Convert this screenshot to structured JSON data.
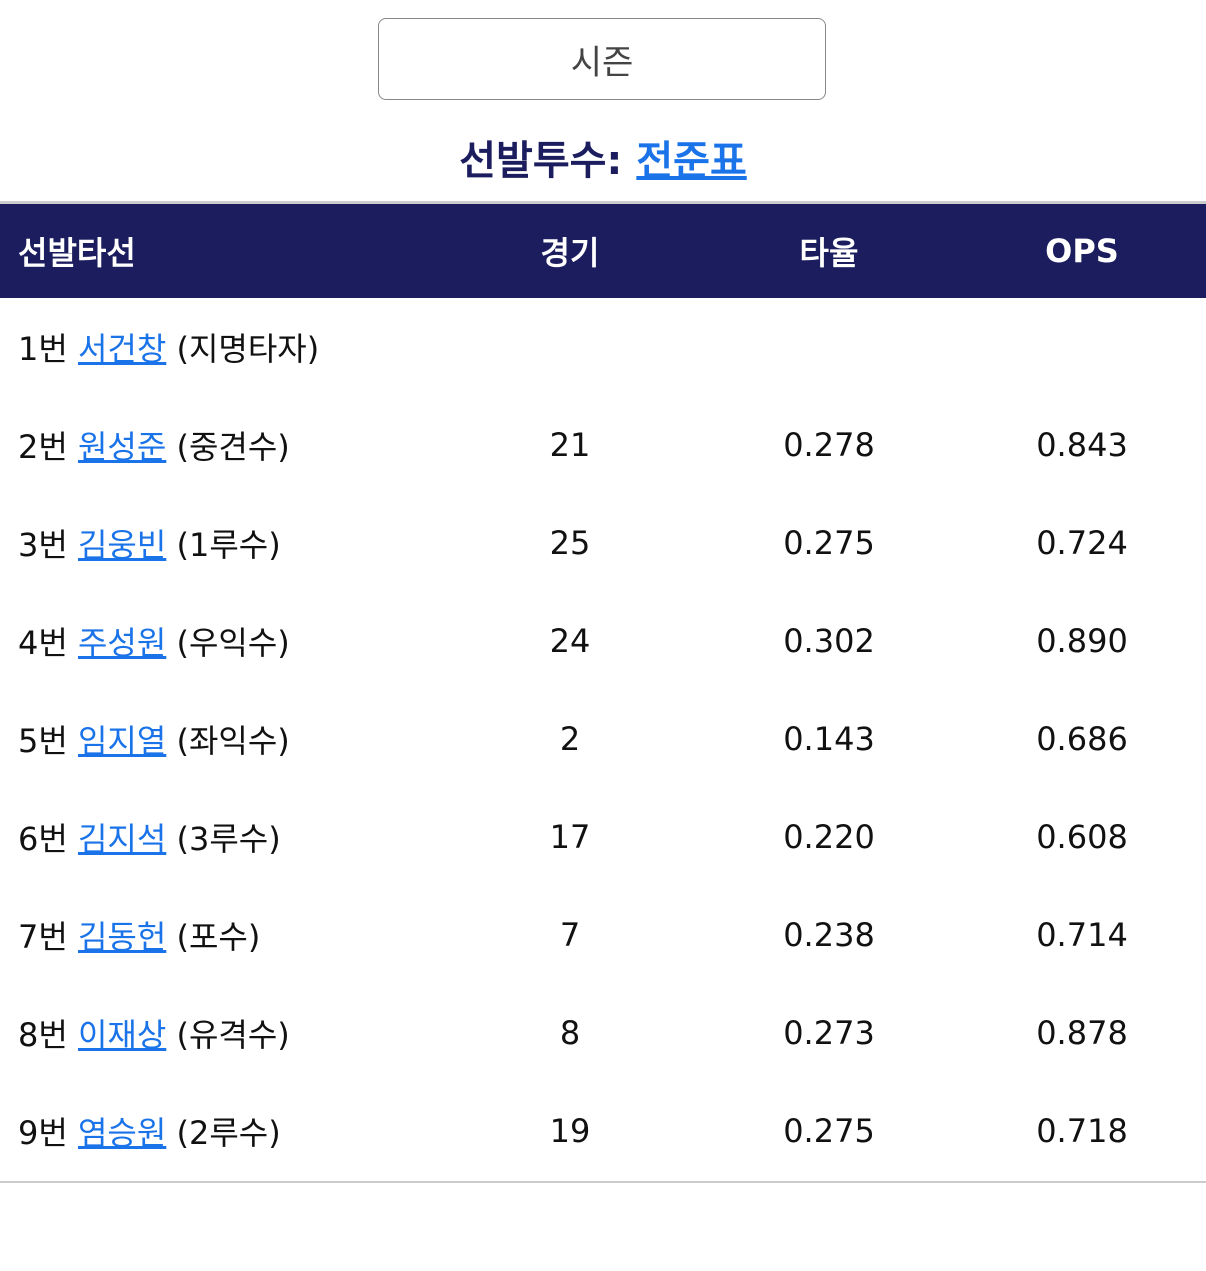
{
  "season_button": "시즌",
  "pitcher": {
    "label": "선발투수:",
    "name": "전준표"
  },
  "table": {
    "headers": [
      "선발타선",
      "경기",
      "타율",
      "OPS"
    ],
    "rows": [
      {
        "order": "1번",
        "name": "서건창",
        "position": "(지명타자)",
        "games": null,
        "avg": null,
        "ops": null
      },
      {
        "order": "2번",
        "name": "원성준",
        "position": "(중견수)",
        "games": "21",
        "avg": "0.278",
        "ops": "0.843"
      },
      {
        "order": "3번",
        "name": "김웅빈",
        "position": "(1루수)",
        "games": "25",
        "avg": "0.275",
        "ops": "0.724"
      },
      {
        "order": "4번",
        "name": "주성원",
        "position": "(우익수)",
        "games": "24",
        "avg": "0.302",
        "ops": "0.890"
      },
      {
        "order": "5번",
        "name": "임지열",
        "position": "(좌익수)",
        "games": "2",
        "avg": "0.143",
        "ops": "0.686"
      },
      {
        "order": "6번",
        "name": "김지석",
        "position": "(3루수)",
        "games": "17",
        "avg": "0.220",
        "ops": "0.608"
      },
      {
        "order": "7번",
        "name": "김동헌",
        "position": "(포수)",
        "games": "7",
        "avg": "0.238",
        "ops": "0.714"
      },
      {
        "order": "8번",
        "name": "이재상",
        "position": "(유격수)",
        "games": "8",
        "avg": "0.273",
        "ops": "0.878"
      },
      {
        "order": "9번",
        "name": "염승원",
        "position": "(2루수)",
        "games": "19",
        "avg": "0.275",
        "ops": "0.718"
      }
    ]
  }
}
